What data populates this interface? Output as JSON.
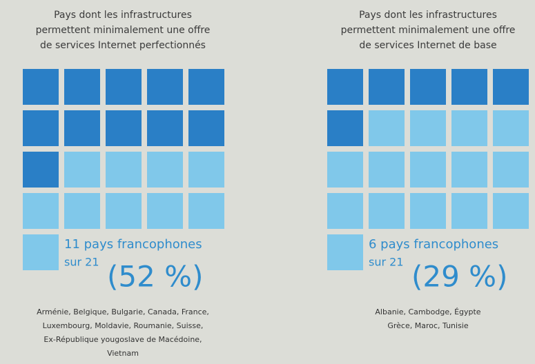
{
  "chart_data": [
    {
      "type": "waffle",
      "title_lines": [
        "Pays dont les infrastructures",
        "permettent minimalement une offre",
        "de services Internet perfectionnés"
      ],
      "value": 11,
      "total": 21,
      "color": "#2a7fc6",
      "empty_color": "#80c8ea",
      "count_label": "11 pays francophones",
      "total_label": "sur 21",
      "percent_label": "(52 %)",
      "countries_lines": [
        "Arménie, Belgique, Bulgarie, Canada, France,",
        "Luxembourg, Moldavie, Roumanie, Suisse,",
        "Ex-République yougoslave de Macédoine,",
        "Vietnam"
      ]
    },
    {
      "type": "waffle",
      "title_lines": [
        "Pays dont les infrastructures",
        "permettent minimalement une offre",
        "de services Internet de base"
      ],
      "value": 6,
      "total": 21,
      "color": "#2a7fc6",
      "empty_color": "#80c8ea",
      "count_label": "6 pays francophones",
      "total_label": "sur 21",
      "percent_label": "(29 %)",
      "countries_lines": [
        "Albanie, Cambodge, Égypte",
        "Grèce, Maroc, Tunisie"
      ]
    }
  ]
}
